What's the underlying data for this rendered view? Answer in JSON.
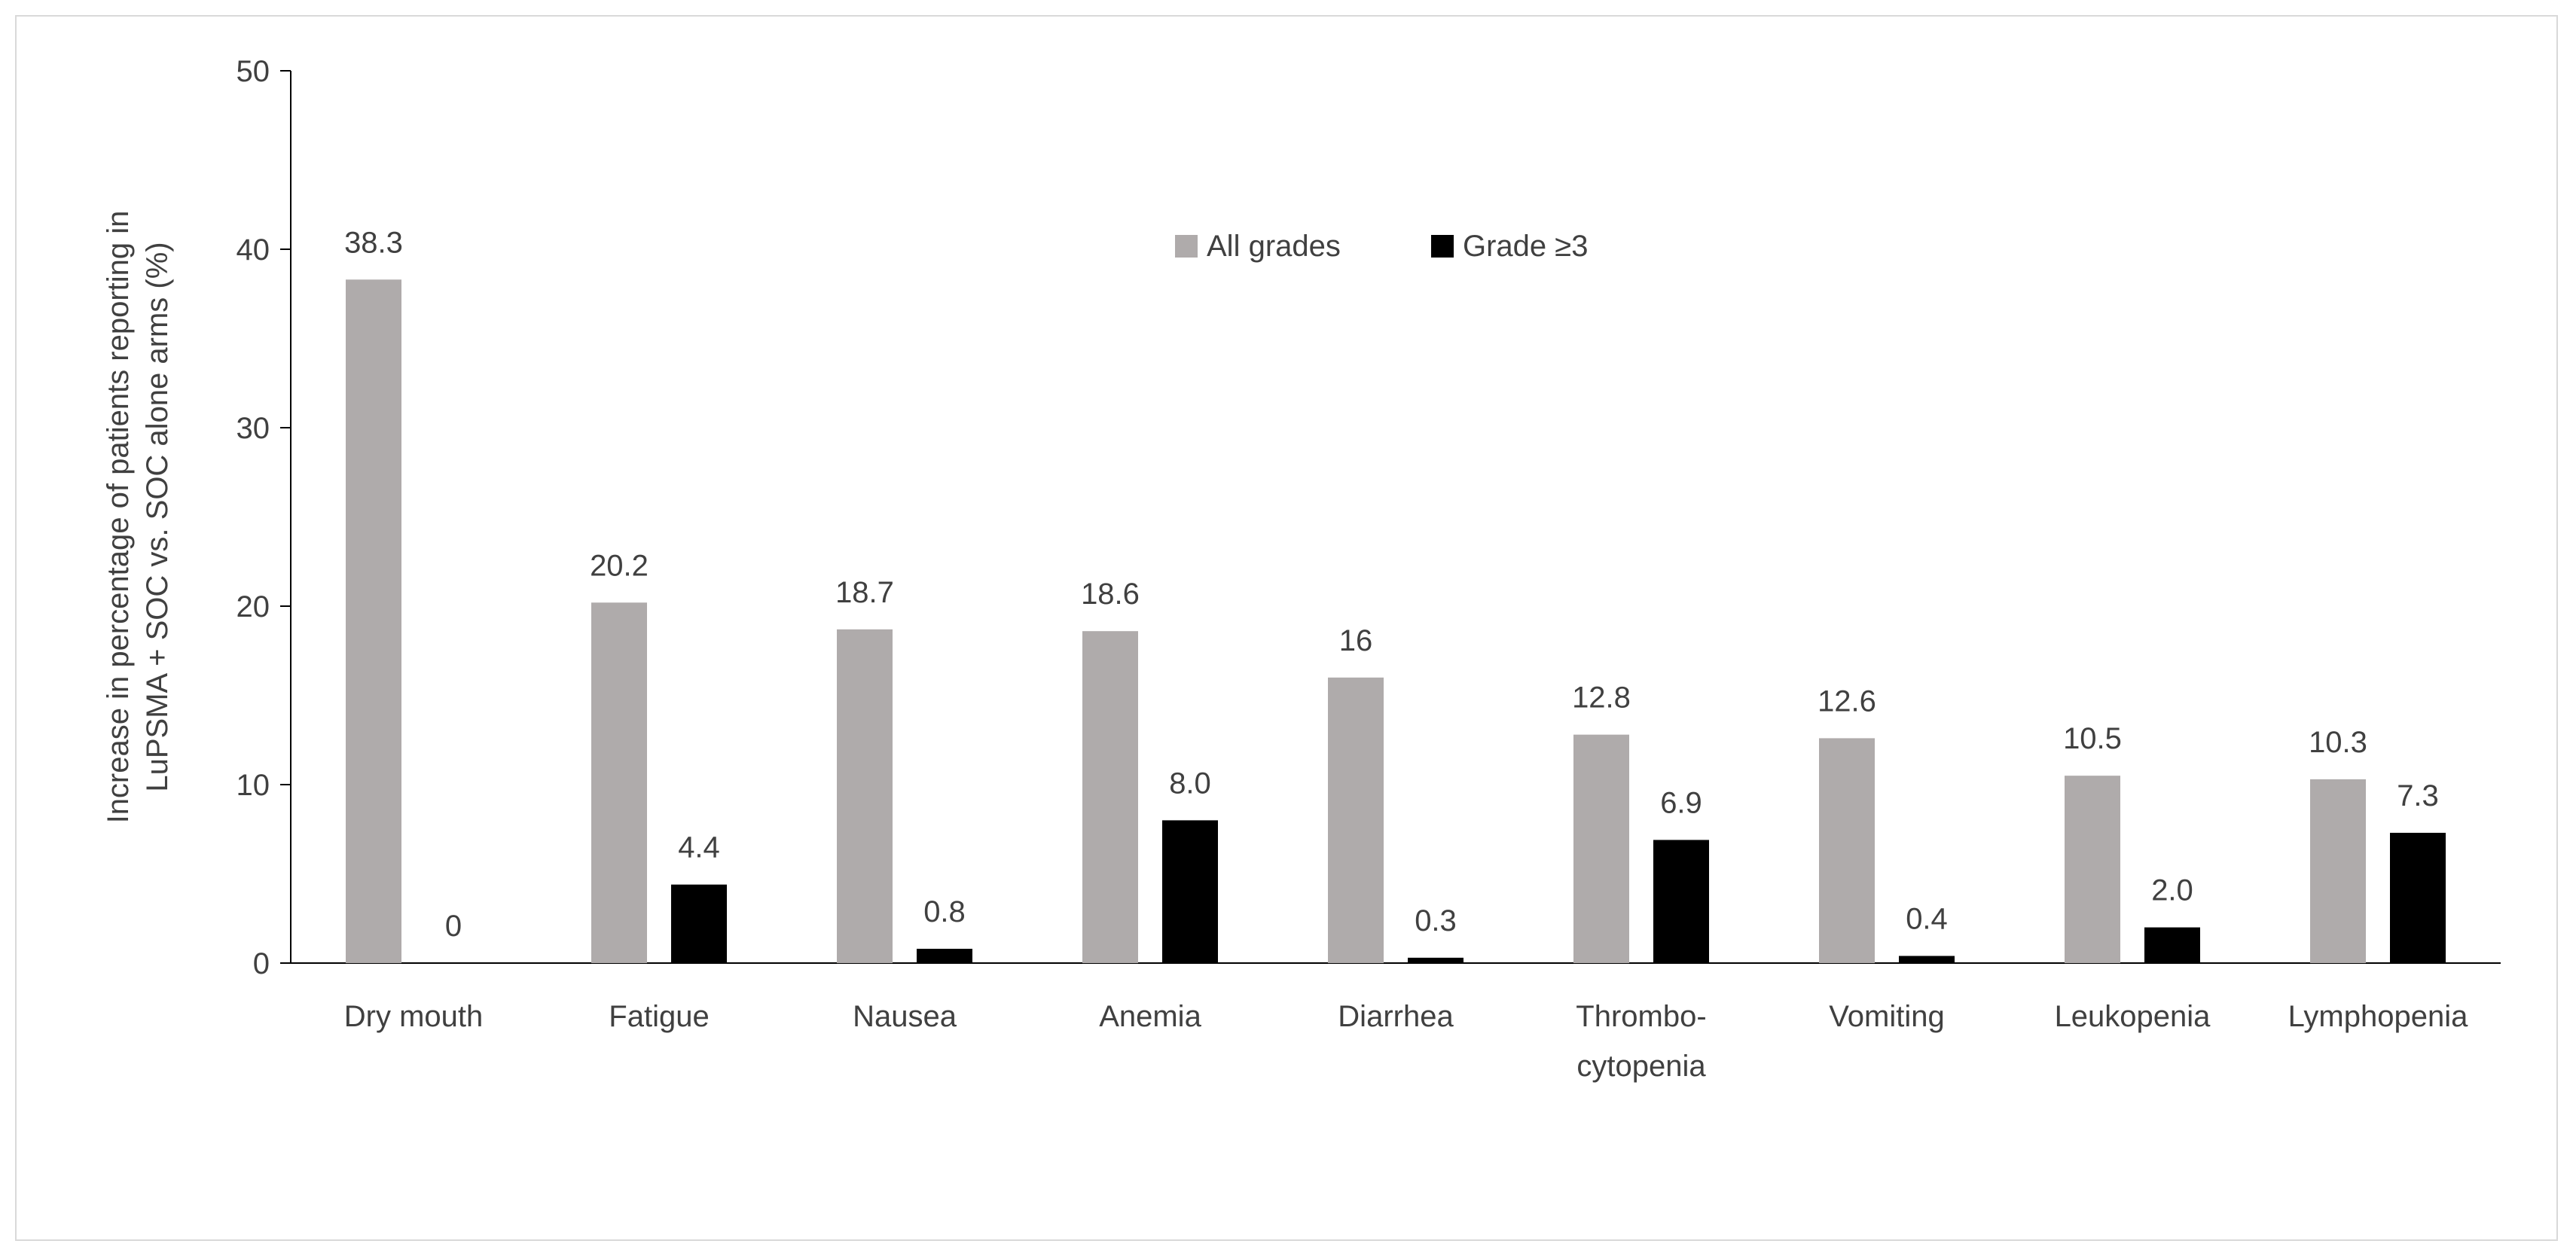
{
  "chart_data": {
    "type": "bar",
    "title": "",
    "xlabel": "",
    "ylabel": [
      "Increase in percentage of patients reporting in",
      "LuPSMA + SOC vs. SOC alone arms (%)"
    ],
    "ylim": [
      0,
      50
    ],
    "yticks": [
      "0",
      "10",
      "20",
      "30",
      "40",
      "50"
    ],
    "grid": false,
    "legend_position": "top-center",
    "categories": [
      [
        "Dry mouth"
      ],
      [
        "Fatigue"
      ],
      [
        "Nausea"
      ],
      [
        "Anemia"
      ],
      [
        "Diarrhea"
      ],
      [
        "Thrombo-",
        "cytopenia"
      ],
      [
        "Vomiting"
      ],
      [
        "Leukopenia"
      ],
      [
        "Lymphopenia"
      ]
    ],
    "series": [
      {
        "name": "All grades",
        "color": "#afabab",
        "values": [
          38.3,
          20.2,
          18.7,
          18.6,
          16,
          12.8,
          12.6,
          10.5,
          10.3
        ],
        "labels": [
          "38.3",
          "20.2",
          "18.7",
          "18.6",
          "16",
          "12.8",
          "12.6",
          "10.5",
          "10.3"
        ]
      },
      {
        "name": "Grade ≥3",
        "color": "#000000",
        "values": [
          0,
          4.4,
          0.8,
          8.0,
          0.3,
          6.9,
          0.4,
          2.0,
          7.3
        ],
        "labels": [
          "0",
          "4.4",
          "0.8",
          "8.0",
          "0.3",
          "6.9",
          "0.4",
          "2.0",
          "7.3"
        ]
      }
    ]
  }
}
